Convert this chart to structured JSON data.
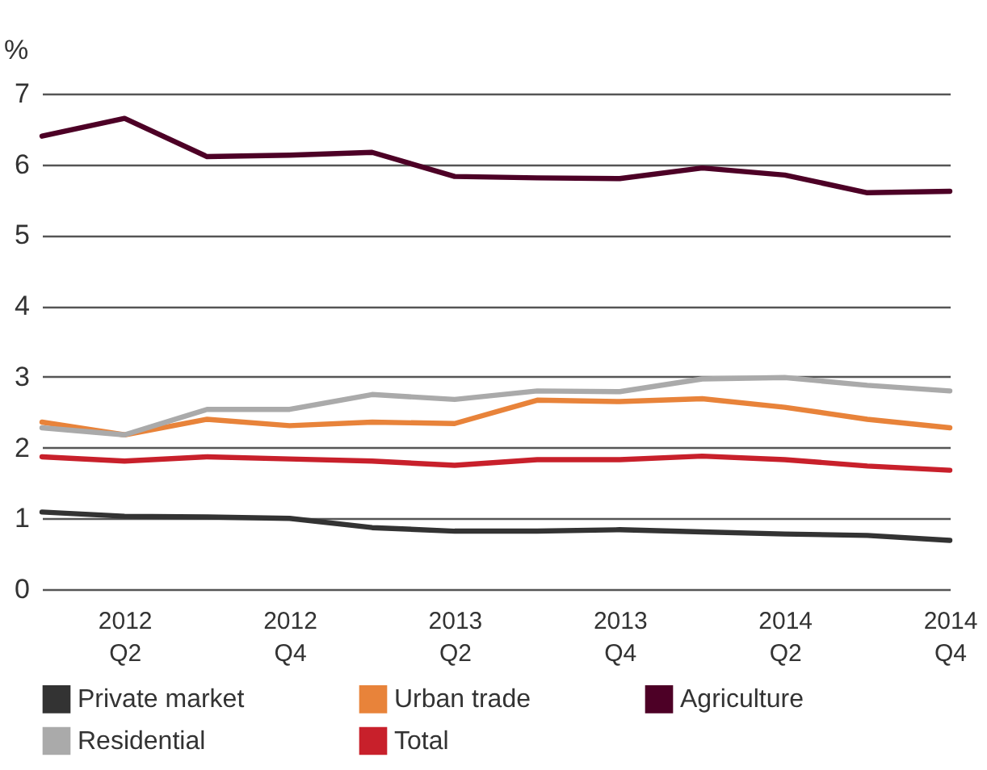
{
  "chart_data": {
    "type": "line",
    "ylabel": "%",
    "categories": [
      null,
      "2012 Q2",
      null,
      "2012 Q4",
      null,
      "2013 Q2",
      null,
      "2013 Q4",
      null,
      "2014 Q2",
      null,
      "2014 Q4"
    ],
    "series": [
      {
        "name": "Private market",
        "color": "#333333",
        "values": [
          1.09,
          1.03,
          1.02,
          1.0,
          0.87,
          0.82,
          0.82,
          0.84,
          0.81,
          0.78,
          0.76,
          0.69
        ]
      },
      {
        "name": "Urban trade",
        "color": "#e8833a",
        "values": [
          2.36,
          2.18,
          2.4,
          2.31,
          2.36,
          2.34,
          2.67,
          2.65,
          2.69,
          2.57,
          2.4,
          2.28
        ]
      },
      {
        "name": "Agriculture",
        "color": "#4d0026",
        "values": [
          6.4,
          6.65,
          6.11,
          6.13,
          6.17,
          5.83,
          5.81,
          5.8,
          5.95,
          5.85,
          5.6,
          5.62
        ]
      },
      {
        "name": "Residential",
        "color": "#aaaaaa",
        "values": [
          2.28,
          2.18,
          2.54,
          2.54,
          2.75,
          2.68,
          2.8,
          2.79,
          2.97,
          2.99,
          2.88,
          2.8
        ]
      },
      {
        "name": "Total",
        "color": "#c8202b",
        "values": [
          1.87,
          1.81,
          1.87,
          1.84,
          1.81,
          1.75,
          1.83,
          1.83,
          1.88,
          1.83,
          1.74,
          1.68
        ]
      }
    ],
    "ylim": [
      0,
      7
    ],
    "yticks": [
      0,
      1,
      2,
      3,
      4,
      5,
      6,
      7
    ],
    "grid": "y",
    "legend": "bottom",
    "line_style": "solid"
  }
}
